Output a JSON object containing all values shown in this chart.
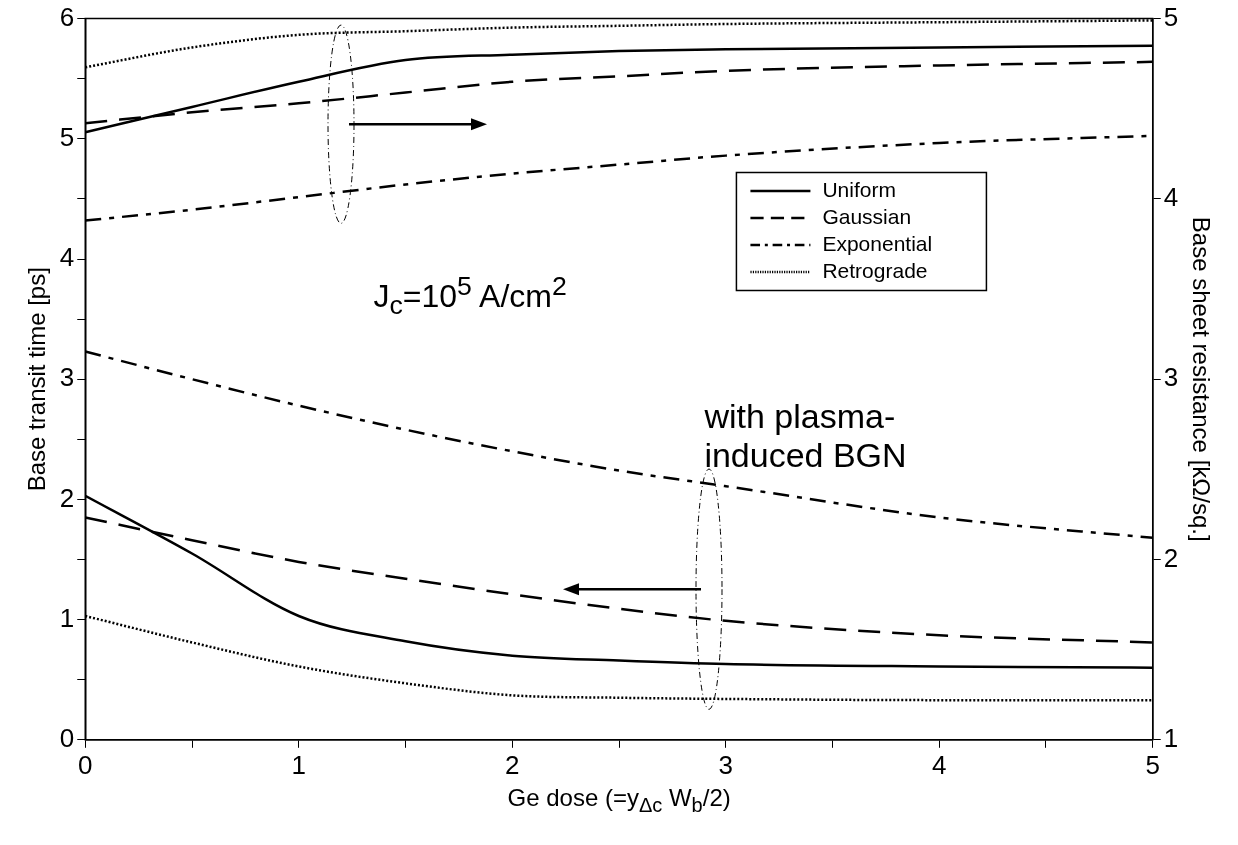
{
  "chart_data": {
    "type": "line",
    "xlabel": "Ge dose (=y$_{Δc}$ W$_{b}$/2)",
    "ylabel": "Base transit time [ps]",
    "y2label": "Base sheet resistance [kΩ/sq.]",
    "annotations": [
      "J$_{c}$=10$^{5}$ A/cm$^{2}$",
      "with plasma-induced BGN"
    ],
    "x": [
      0,
      0.5,
      1,
      1.5,
      2,
      2.5,
      3,
      4,
      5
    ],
    "xlim": [
      0,
      5
    ],
    "xticks": [
      0,
      {
        "value": 0.5,
        "label": null
      },
      1,
      {
        "value": 1.5,
        "label": null
      },
      2,
      {
        "value": 2.5,
        "label": null
      },
      3,
      {
        "value": 3.5,
        "label": null
      },
      4,
      {
        "value": 4.5,
        "label": null
      },
      5
    ],
    "ylim": [
      0,
      6
    ],
    "yticks": [
      0,
      {
        "value": 0.5,
        "label": null
      },
      1,
      {
        "value": 1.5,
        "label": null
      },
      2,
      {
        "value": 2.5,
        "label": null
      },
      3,
      {
        "value": 3.5,
        "label": null
      },
      4,
      {
        "value": 4.5,
        "label": null
      },
      5,
      {
        "value": 5.5,
        "label": null
      },
      6
    ],
    "y2lim": [
      1,
      5
    ],
    "y2ticks": [
      1,
      2,
      3,
      4,
      5
    ],
    "grid": false,
    "legend": "top right",
    "marker": "none",
    "series": [
      {
        "name": "Uniform",
        "color": "#000000",
        "line_style": "solid",
        "values": [
          2.03,
          1.55,
          1.03,
          0.82,
          0.7,
          0.66,
          0.63,
          0.61,
          0.6
        ]
      },
      {
        "name": "Gaussian",
        "color": "#000000",
        "line_style": "dashed",
        "values": [
          1.85,
          1.66,
          1.48,
          1.34,
          1.21,
          1.09,
          0.99,
          0.87,
          0.81
        ]
      },
      {
        "name": "Exponential",
        "color": "#000000",
        "line_style": "dashdot",
        "values": [
          3.23,
          3.0,
          2.78,
          2.58,
          2.4,
          2.24,
          2.11,
          1.85,
          1.68
        ]
      },
      {
        "name": "Retrograde",
        "color": "#000000",
        "line_style": "dotted",
        "values": [
          1.03,
          0.81,
          0.61,
          0.47,
          0.37,
          0.35,
          0.34,
          0.33,
          0.33
        ]
      },
      {
        "color": "#000000",
        "line_style": "solid",
        "axis": "y2",
        "values": [
          4.37,
          4.51,
          4.65,
          4.77,
          4.8,
          4.82,
          4.83,
          4.84,
          4.85
        ]
      },
      {
        "color": "#000000",
        "line_style": "dashed",
        "axis": "y2",
        "values": [
          4.42,
          4.48,
          4.53,
          4.59,
          4.65,
          4.68,
          4.71,
          4.74,
          4.76
        ]
      },
      {
        "color": "#000000",
        "line_style": "dashdot",
        "axis": "y2",
        "values": [
          3.88,
          3.94,
          4.01,
          4.08,
          4.14,
          4.19,
          4.24,
          4.31,
          4.35
        ]
      },
      {
        "color": "#000000",
        "line_style": "dotted",
        "axis": "y2",
        "values": [
          4.73,
          4.84,
          4.91,
          4.93,
          4.95,
          4.96,
          4.97,
          4.98,
          4.99
        ]
      }
    ]
  }
}
